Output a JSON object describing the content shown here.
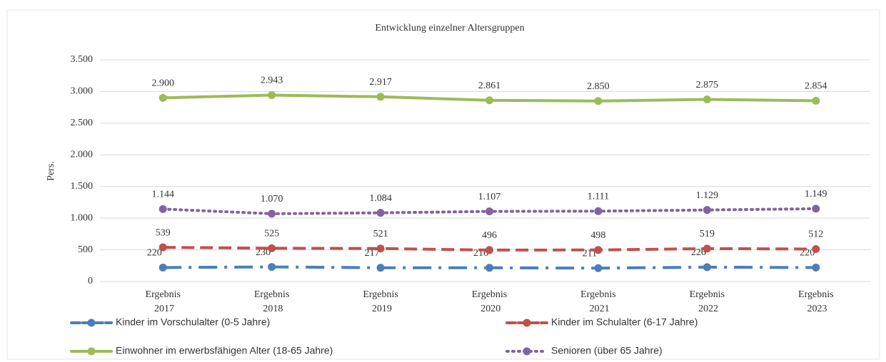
{
  "chart_data": {
    "type": "line",
    "title": "Entwicklung  einzelner  Altersgruppen",
    "ylabel": "Pers.",
    "categories": [
      "Ergebnis 2017",
      "Ergebnis 2018",
      "Ergebnis 2019",
      "Ergebnis 2020",
      "Ergebnis 2021",
      "Ergebnis 2022",
      "Ergebnis 2023"
    ],
    "ylim": [
      0,
      3500
    ],
    "yticks": [
      0,
      500,
      {
        "value": 1000,
        "label": "1.000"
      },
      {
        "value": 1500,
        "label": "1.500"
      },
      {
        "value": 2000,
        "label": "2.000"
      },
      {
        "value": 2500,
        "label": "2.500"
      },
      {
        "value": 3000,
        "label": "3.000"
      },
      {
        "value": 3500,
        "label": "3.500"
      }
    ],
    "grid": true,
    "legend": "bottom",
    "series": [
      {
        "name": "Kinder im Vorschulalter (0-5 Jahre)",
        "color": "#4a7ebb",
        "dash": "26 10 4 10",
        "values": [
          220,
          230,
          217,
          216,
          211,
          226,
          220
        ]
      },
      {
        "name": "Kinder im Schulalter (6-17 Jahre)",
        "color": "#c0504d",
        "dash": "18 8",
        "values": [
          539,
          525,
          521,
          496,
          498,
          519,
          512
        ]
      },
      {
        "name": "Einwohner im erwerbsfähigen Alter (18-65 Jahre)",
        "color": "#9bbb59",
        "dash": "none",
        "values": [
          2900,
          2943,
          2917,
          2861,
          2850,
          2875,
          2854
        ],
        "value_labels": [
          "2.900",
          "2.943",
          "2.917",
          "2.861",
          "2.850",
          "2.875",
          "2.854"
        ]
      },
      {
        "name": "Senioren (über 65 Jahre)",
        "color": "#8064a2",
        "dash": "2 6",
        "values": [
          1144,
          1070,
          1084,
          1107,
          1111,
          1129,
          1149
        ],
        "value_labels": [
          "1.144",
          "1.070",
          "1.084",
          "1.107",
          "1.111",
          "1.129",
          "1.149"
        ]
      }
    ]
  }
}
